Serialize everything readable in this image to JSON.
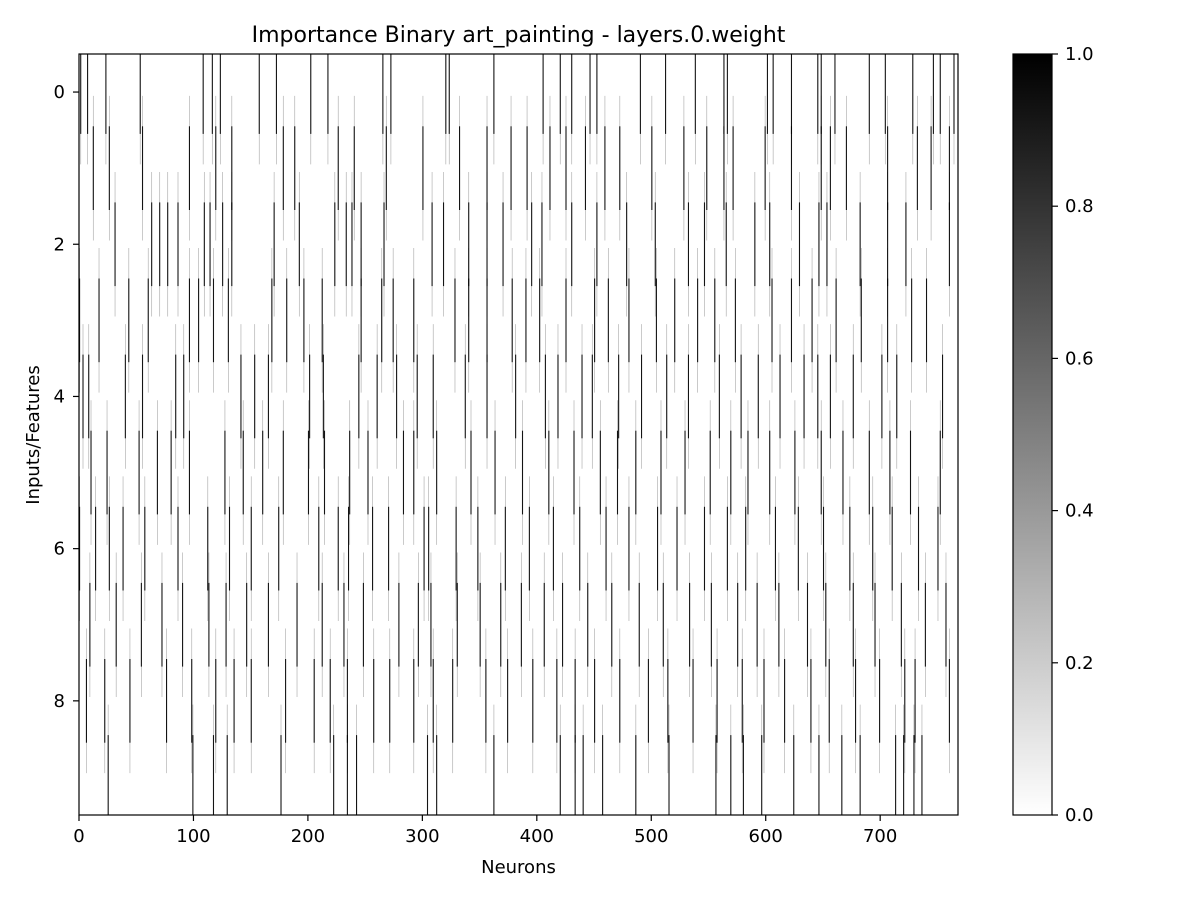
{
  "chart_data": {
    "type": "heatmap",
    "title": "Importance Binary art_painting - layers.0.weight",
    "xlabel": "Neurons",
    "ylabel": "Inputs/Features",
    "xlim": [
      0,
      768
    ],
    "ylim": [
      9.5,
      -0.5
    ],
    "rows": 10,
    "cols": 768,
    "cmap": "gray_r",
    "interpolation": "smooth",
    "value_range": [
      0,
      1
    ],
    "xticks": [
      "0",
      "100",
      "200",
      "300",
      "400",
      "500",
      "600",
      "700"
    ],
    "yticks": [
      "0",
      "2",
      "4",
      "6",
      "8"
    ],
    "colorbar": {
      "ticks": [
        "0.0",
        "0.2",
        "0.4",
        "0.6",
        "0.8",
        "1.0"
      ],
      "range": [
        0,
        1
      ],
      "low_color": "#ffffff",
      "high_color": "#000000"
    },
    "binary_value_1_row_cells": [
      [
        1,
        7,
        23,
        53,
        108,
        116,
        123,
        157,
        172,
        202,
        217,
        265,
        272,
        320,
        323,
        362,
        405,
        420,
        430,
        446,
        452,
        490,
        512,
        538,
        563,
        566,
        601,
        606,
        622,
        645,
        648,
        660,
        690,
        704,
        728,
        746,
        752,
        764
      ],
      [
        12,
        26,
        55,
        96,
        119,
        133,
        178,
        188,
        226,
        240,
        268,
        300,
        332,
        356,
        377,
        391,
        411,
        425,
        442,
        459,
        472,
        500,
        528,
        548,
        563,
        571,
        599,
        622,
        648,
        656,
        670,
        706,
        732,
        744,
        760
      ],
      [
        31,
        63,
        70,
        77,
        86,
        109,
        114,
        125,
        133,
        170,
        192,
        223,
        233,
        238,
        246,
        266,
        308,
        318,
        340,
        356,
        370,
        395,
        404,
        430,
        452,
        478,
        503,
        532,
        546,
        565,
        590,
        603,
        629,
        646,
        653,
        682,
        706,
        722,
        760
      ],
      [
        0,
        17,
        43,
        60,
        96,
        104,
        117,
        130,
        168,
        181,
        196,
        212,
        246,
        264,
        274,
        292,
        328,
        340,
        356,
        378,
        390,
        402,
        425,
        450,
        462,
        480,
        504,
        520,
        540,
        555,
        573,
        605,
        622,
        640,
        661,
        683,
        706,
        727,
        740
      ],
      [
        3,
        8,
        40,
        55,
        84,
        91,
        141,
        153,
        165,
        201,
        213,
        244,
        260,
        277,
        295,
        309,
        337,
        356,
        381,
        407,
        418,
        439,
        448,
        471,
        491,
        513,
        532,
        559,
        578,
        593,
        612,
        633,
        645,
        656,
        676,
        701,
        714,
        754
      ],
      [
        10,
        24,
        52,
        68,
        80,
        96,
        127,
        143,
        160,
        178,
        200,
        214,
        236,
        252,
        283,
        292,
        312,
        342,
        363,
        387,
        410,
        432,
        455,
        470,
        486,
        508,
        529,
        551,
        569,
        584,
        603,
        625,
        648,
        667,
        690,
        708,
        726,
        752
      ],
      [
        0,
        14,
        26,
        38,
        57,
        86,
        112,
        131,
        150,
        174,
        209,
        226,
        235,
        256,
        270,
        301,
        305,
        329,
        348,
        372,
        393,
        414,
        437,
        460,
        480,
        505,
        522,
        546,
        566,
        582,
        608,
        628,
        650,
        673,
        693,
        710,
        733,
        750
      ],
      [
        9,
        32,
        54,
        72,
        90,
        113,
        128,
        146,
        165,
        190,
        212,
        231,
        248,
        279,
        296,
        307,
        330,
        350,
        368,
        386,
        406,
        422,
        444,
        465,
        489,
        510,
        533,
        552,
        575,
        592,
        611,
        636,
        652,
        676,
        695,
        718,
        739,
        757
      ],
      [
        6,
        22,
        44,
        76,
        98,
        119,
        135,
        150,
        180,
        205,
        219,
        234,
        257,
        271,
        292,
        309,
        326,
        355,
        374,
        396,
        417,
        433,
        450,
        472,
        497,
        514,
        536,
        557,
        579,
        598,
        616,
        639,
        655,
        678,
        699,
        721,
        730,
        760
      ],
      [
        25,
        99,
        117,
        129,
        176,
        222,
        234,
        242,
        304,
        312,
        362,
        420,
        433,
        440,
        457,
        486,
        515,
        556,
        569,
        580,
        596,
        624,
        646,
        666,
        682,
        713,
        720,
        729,
        736
      ]
    ]
  }
}
